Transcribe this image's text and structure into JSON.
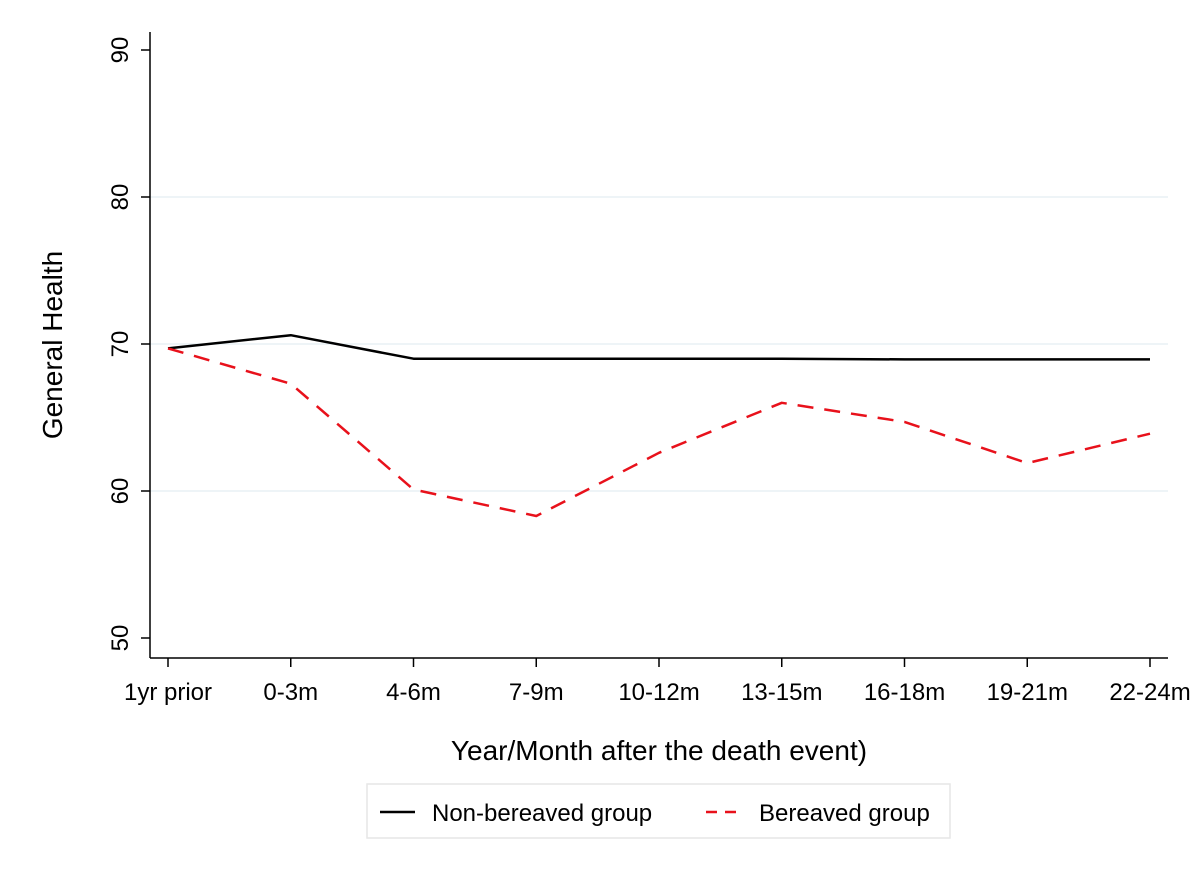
{
  "chart_data": {
    "type": "line",
    "categories": [
      "1yr prior",
      "0-3m",
      "4-6m",
      "7-9m",
      "10-12m",
      "13-15m",
      "16-18m",
      "19-21m",
      "22-24m"
    ],
    "series": [
      {
        "name": "Non-bereaved group",
        "values": [
          69.7,
          70.6,
          69.0,
          69.0,
          69.0,
          69.0,
          68.95,
          68.95,
          68.95
        ],
        "color": "#000000",
        "style": "solid"
      },
      {
        "name": "Bereaved group",
        "values": [
          69.7,
          67.3,
          60.1,
          58.3,
          62.6,
          66.0,
          64.7,
          61.9,
          63.9
        ],
        "color": "#e8111b",
        "style": "dashed"
      }
    ],
    "yticks": [
      50,
      60,
      70,
      80,
      90
    ],
    "ylim": [
      48.5,
      91.5
    ],
    "xlabel": "Year/Month after the death event)",
    "ylabel": "General Health",
    "grid": true,
    "legend_position": "bottom"
  }
}
